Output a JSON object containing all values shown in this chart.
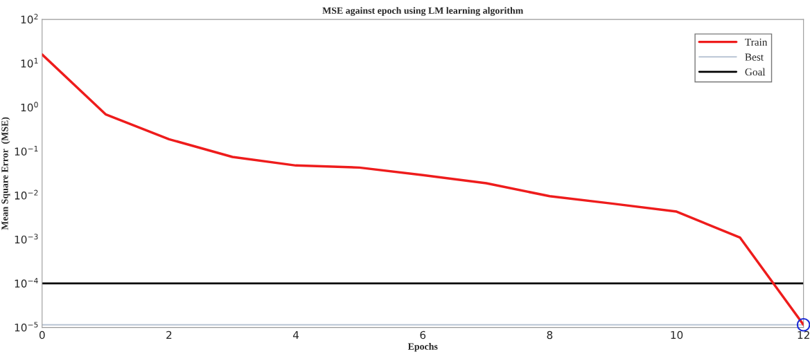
{
  "chart_data": {
    "type": "line",
    "title": "MSE against epoch using LM learning algorithm",
    "xlabel": "Epochs",
    "ylabel": "Mean Square Error  (MSE)",
    "x": [
      0,
      1,
      2,
      3,
      4,
      5,
      6,
      7,
      8,
      9,
      10,
      11,
      12
    ],
    "series": [
      {
        "name": "Train",
        "color": "#ee1c1c",
        "values": [
          16,
          0.7,
          0.19,
          0.075,
          0.048,
          0.043,
          0.029,
          0.019,
          0.0096,
          0.0065,
          0.0043,
          0.0011,
          1.15e-05
        ]
      },
      {
        "type": "scatter",
        "color": "#1a2bd6",
        "marker": "circle",
        "x": [
          12
        ],
        "values": [
          1.15e-05
        ]
      }
    ],
    "ref_lines": [
      {
        "axis": "y",
        "value": 1.15e-05,
        "label": "Best",
        "color": "#b8c4d4"
      },
      {
        "axis": "y",
        "value": 0.0001,
        "label": "Goal",
        "color": "#000000"
      }
    ],
    "log": "y",
    "xlim": [
      0,
      12
    ],
    "xticks": [
      0,
      2,
      4,
      6,
      8,
      10,
      12
    ],
    "ylim": [
      1e-05,
      100
    ],
    "yticks": [
      {
        "value": 1e-05,
        "label": "10$^{−5}$"
      },
      {
        "value": 0.0001,
        "label": "10$^{−4}$"
      },
      {
        "value": 0.001,
        "label": "10$^{−3}$"
      },
      {
        "value": 0.01,
        "label": "10$^{−2}$"
      },
      {
        "value": 0.1,
        "label": "10$^{−1}$"
      },
      {
        "value": 1,
        "label": "10$^{0}$"
      },
      {
        "value": 10,
        "label": "10$^{1}$"
      },
      {
        "value": 100,
        "label": "10$^{2}$"
      }
    ],
    "grid": false,
    "legend": "top right"
  }
}
